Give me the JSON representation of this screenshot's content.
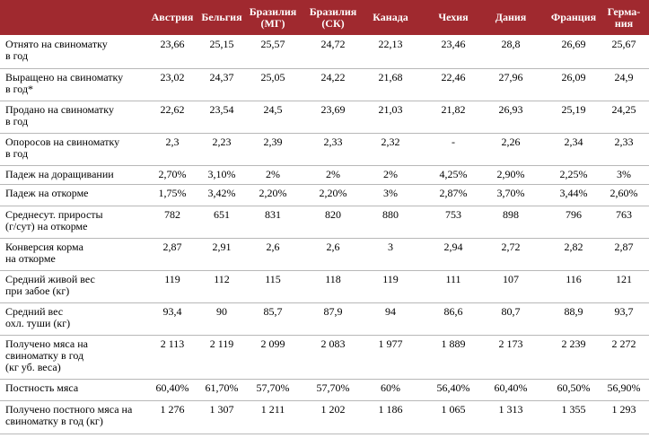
{
  "table": {
    "columns": [
      "Австрия",
      "Бельгия",
      "Бразилия\n(МГ)",
      "Бразилия\n(СК)",
      "Канада",
      "Чехия",
      "Дания",
      "Франция",
      "Герма-\nния"
    ],
    "rows": [
      {
        "label": "Отнято на свиноматку\nв год",
        "values": [
          "23,66",
          "25,15",
          "25,57",
          "24,72",
          "22,13",
          "23,46",
          "28,8",
          "26,69",
          "25,67"
        ]
      },
      {
        "label": "Выращено на свиноматку\nв год*",
        "values": [
          "23,02",
          "24,37",
          "25,05",
          "24,22",
          "21,68",
          "22,46",
          "27,96",
          "26,09",
          "24,9"
        ]
      },
      {
        "label": "Продано на свиноматку\nв год",
        "values": [
          "22,62",
          "23,54",
          "24,5",
          "23,69",
          "21,03",
          "21,82",
          "26,93",
          "25,19",
          "24,25"
        ]
      },
      {
        "label": "Опоросов на свиноматку\nв год",
        "values": [
          "2,3",
          "2,23",
          "2,39",
          "2,33",
          "2,32",
          "-",
          "2,26",
          "2,34",
          "2,33"
        ]
      },
      {
        "label": "Падеж на доращивании",
        "values": [
          "2,70%",
          "3,10%",
          "2%",
          "2%",
          "2%",
          "4,25%",
          "2,90%",
          "2,25%",
          "3%"
        ]
      },
      {
        "label": "Падеж на откорме",
        "values": [
          "1,75%",
          "3,42%",
          "2,20%",
          "2,20%",
          "3%",
          "2,87%",
          "3,70%",
          "3,44%",
          "2,60%"
        ]
      },
      {
        "label": "Среднесут. приросты\n(г/сут) на откорме",
        "values": [
          "782",
          "651",
          "831",
          "820",
          "880",
          "753",
          "898",
          "796",
          "763"
        ]
      },
      {
        "label": "Конверсия корма\nна откорме",
        "values": [
          "2,87",
          "2,91",
          "2,6",
          "2,6",
          "3",
          "2,94",
          "2,72",
          "2,82",
          "2,87"
        ]
      },
      {
        "label": "Средний живой вес\nпри забое (кг)",
        "values": [
          "119",
          "112",
          "115",
          "118",
          "119",
          "111",
          "107",
          "116",
          "121"
        ]
      },
      {
        "label": "Средний вес\nохл. туши  (кг)",
        "values": [
          "93,4",
          "90",
          "85,7",
          "87,9",
          "94",
          "86,6",
          "80,7",
          "88,9",
          "93,7"
        ]
      },
      {
        "label": "Получено мяса на\nсвиноматку в год\n(кг уб. веса)",
        "values": [
          "2 113",
          "2 119",
          "2 099",
          "2 083",
          "1 977",
          "1 889",
          "2 173",
          "2 239",
          "2 272"
        ]
      },
      {
        "label": "Постность мяса",
        "values": [
          "60,40%",
          "61,70%",
          "57,70%",
          "57,70%",
          "60%",
          "56,40%",
          "60,40%",
          "60,50%",
          "56,90%"
        ]
      },
      {
        "label": "Получено постного мяса на\nсвиноматку в год (кг)",
        "values": [
          "1 276",
          "1 307",
          "1 211",
          "1 202",
          "1 186",
          "1 065",
          "1 313",
          "1 355",
          "1 293"
        ]
      }
    ]
  }
}
